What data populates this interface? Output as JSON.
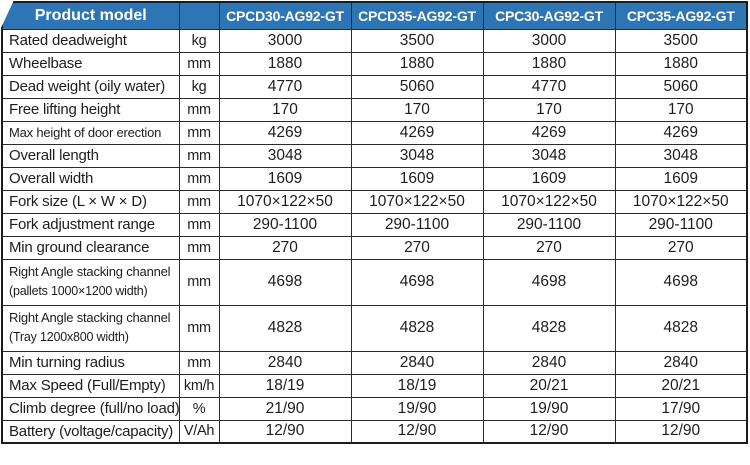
{
  "table": {
    "header": {
      "product_model_label": "Product model",
      "unit_header": "",
      "models": [
        "CPCD30-AG92-GT",
        "CPCD35-AG92-GT",
        "CPC30-AG92-GT",
        "CPC35-AG92-GT"
      ]
    },
    "rows": [
      {
        "label": "Rated deadweight",
        "unit": "kg",
        "values": [
          "3000",
          "3500",
          "3000",
          "3500"
        ]
      },
      {
        "label": "Wheelbase",
        "unit": "mm",
        "values": [
          "1880",
          "1880",
          "1880",
          "1880"
        ]
      },
      {
        "label": "Dead weight (oily water)",
        "unit": "kg",
        "values": [
          "4770",
          "5060",
          "4770",
          "5060"
        ]
      },
      {
        "label": "Free lifting height",
        "unit": "mm",
        "values": [
          "170",
          "170",
          "170",
          "170"
        ]
      },
      {
        "label": "Max height of door erection",
        "unit": "mm",
        "small": true,
        "values": [
          "4269",
          "4269",
          "4269",
          "4269"
        ]
      },
      {
        "label": "Overall length",
        "unit": "mm",
        "values": [
          "3048",
          "3048",
          "3048",
          "3048"
        ]
      },
      {
        "label": "Overall width",
        "unit": "mm",
        "values": [
          "1609",
          "1609",
          "1609",
          "1609"
        ]
      },
      {
        "label": "Fork size (L × W × D)",
        "unit": "mm",
        "values": [
          "1070×122×50",
          "1070×122×50",
          "1070×122×50",
          "1070×122×50"
        ]
      },
      {
        "label": "Fork adjustment range",
        "unit": "mm",
        "values": [
          "290-1100",
          "290-1100",
          "290-1100",
          "290-1100"
        ]
      },
      {
        "label": "Min ground clearance",
        "unit": "mm",
        "values": [
          "270",
          "270",
          "270",
          "270"
        ]
      },
      {
        "label_lines": [
          "Right Angle stacking channel",
          "(pallets 1000×1200 width)"
        ],
        "unit": "mm",
        "tall": true,
        "values": [
          "4698",
          "4698",
          "4698",
          "4698"
        ]
      },
      {
        "label_lines": [
          "Right Angle stacking channel",
          "(Tray 1200x800 width)"
        ],
        "unit": "mm",
        "tall": true,
        "values": [
          "4828",
          "4828",
          "4828",
          "4828"
        ]
      },
      {
        "label": "Min turning radius",
        "unit": "mm",
        "values": [
          "2840",
          "2840",
          "2840",
          "2840"
        ]
      },
      {
        "label": "Max Speed (Full/Empty)",
        "unit": "km/h",
        "values": [
          "18/19",
          "18/19",
          "20/21",
          "20/21"
        ]
      },
      {
        "label": "Climb degree (full/no load)",
        "unit": "%",
        "values": [
          "21/90",
          "19/90",
          "19/90",
          "17/90"
        ]
      },
      {
        "label": "Battery (voltage/capacity)",
        "unit": "V/Ah",
        "values": [
          "12/90",
          "12/90",
          "12/90",
          "12/90"
        ]
      }
    ],
    "colors": {
      "header_bg": "#2E75B6",
      "header_text": "#FFFFFF",
      "body_text": "#1D1D1D",
      "border": "#2B2B2B"
    }
  }
}
